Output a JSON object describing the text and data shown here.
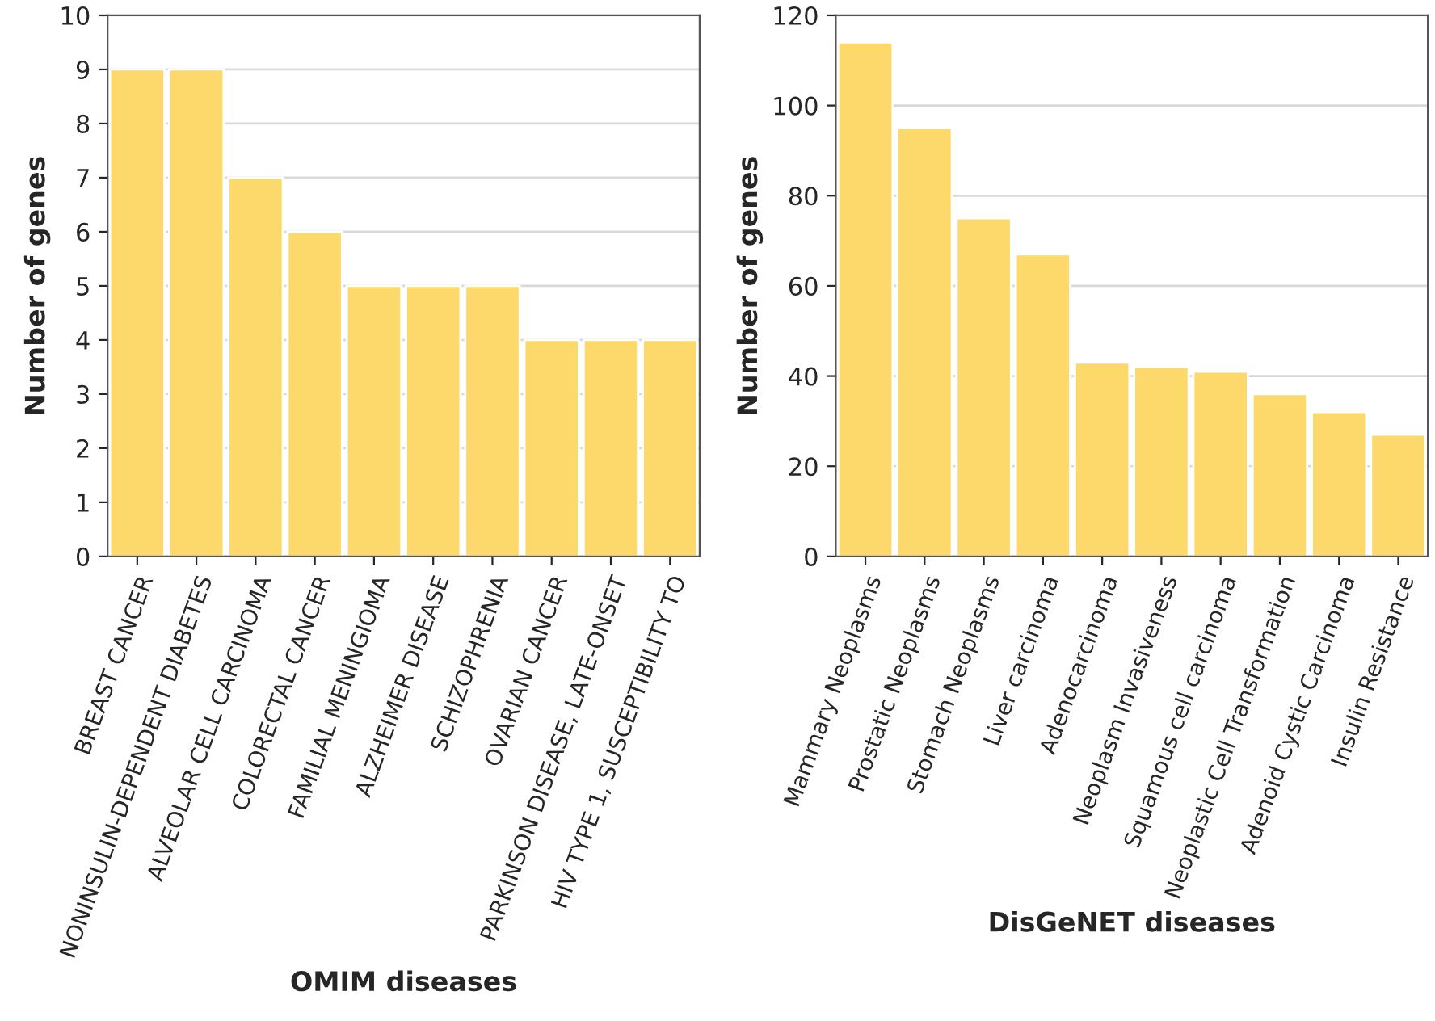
{
  "chart_data": [
    {
      "type": "bar",
      "xlabel": "OMIM diseases",
      "ylabel": "Number of genes",
      "categories": [
        "BREAST CANCER",
        "NONINSULIN-DEPENDENT DIABETES",
        "ALVEOLAR CELL CARCINOMA",
        "COLORECTAL CANCER",
        "FAMILIAL MENINGIOMA",
        "ALZHEIMER DISEASE",
        "SCHIZOPHRENIA",
        "OVARIAN CANCER",
        "PARKINSON DISEASE, LATE-ONSET",
        "HIV TYPE 1, SUSCEPTIBILITY TO"
      ],
      "values": [
        9,
        9,
        7,
        6,
        5,
        5,
        5,
        4,
        4,
        4
      ],
      "color": "#fdd86a",
      "ylim": [
        0,
        10
      ],
      "yticks": [
        0,
        1,
        2,
        3,
        4,
        5,
        6,
        7,
        8,
        9,
        10
      ],
      "grid": "y"
    },
    {
      "type": "bar",
      "xlabel": "DisGeNET diseases",
      "ylabel": "Number of genes",
      "categories": [
        "Mammary Neoplasms",
        "Prostatic Neoplasms",
        "Stomach Neoplasms",
        "Liver carcinoma",
        "Adenocarcinoma",
        "Neoplasm Invasiveness",
        "Squamous cell carcinoma",
        "Neoplastic Cell Transformation",
        "Adenoid Cystic Carcinoma",
        "Insulin Resistance"
      ],
      "values": [
        114,
        95,
        75,
        67,
        43,
        42,
        41,
        36,
        32,
        27
      ],
      "color": "#fdd86a",
      "ylim": [
        0,
        120
      ],
      "yticks": [
        0,
        20,
        40,
        60,
        80,
        100,
        120
      ],
      "grid": "y"
    }
  ]
}
